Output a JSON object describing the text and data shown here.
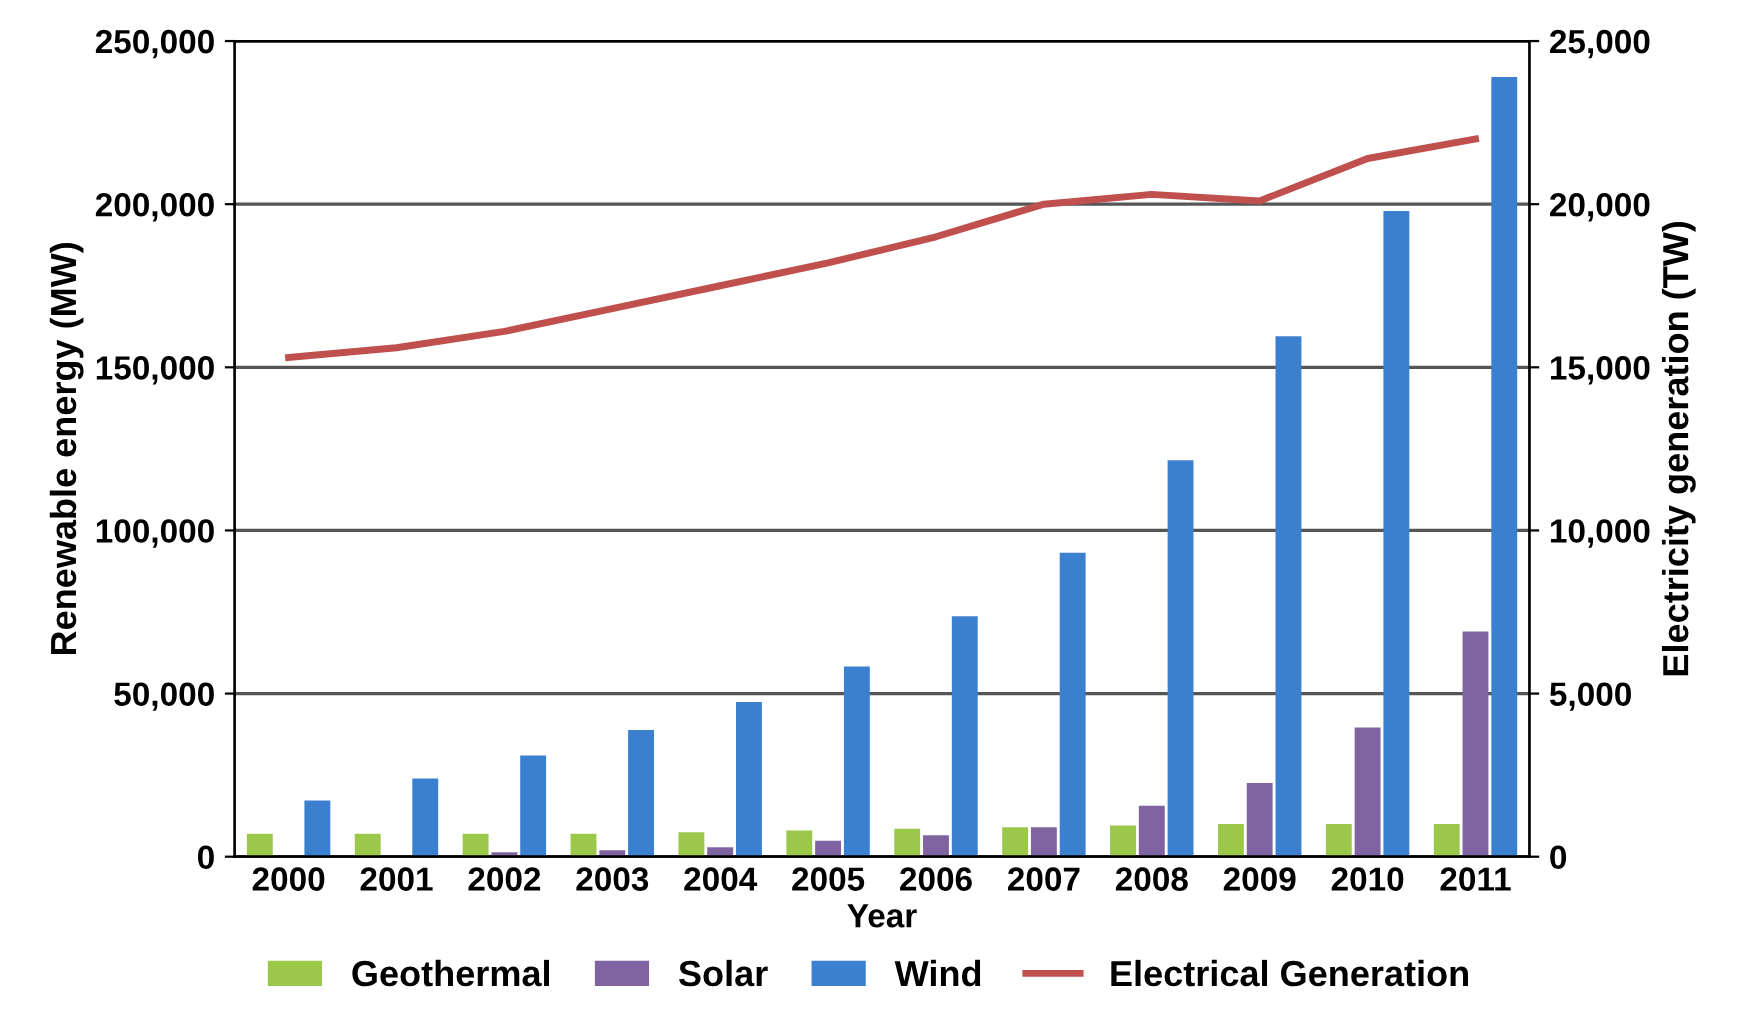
{
  "chart_data": {
    "type": "bar",
    "xlabel": "Year",
    "ylabel": "Renewable energy (MW)",
    "y2label": "Electricity generation (TW)",
    "categories": [
      "2000",
      "2001",
      "2002",
      "2003",
      "2004",
      "2005",
      "2006",
      "2007",
      "2008",
      "2009",
      "2010",
      "2011"
    ],
    "series": [
      {
        "name": "Geothermal",
        "color": "#9bc84a",
        "values": [
          7000,
          7000,
          7000,
          7000,
          7500,
          8000,
          8600,
          9000,
          9600,
          10000,
          10000,
          10000
        ]
      },
      {
        "name": "Solar",
        "color": "#8064a2",
        "values": [
          null,
          null,
          1400,
          2000,
          2900,
          4900,
          6600,
          9000,
          15600,
          22600,
          39600,
          69000
        ]
      },
      {
        "name": "Wind",
        "color": "#3b7fcf",
        "values": [
          17200,
          24000,
          31000,
          38800,
          47400,
          58300,
          73700,
          93200,
          121500,
          159500,
          197900,
          239000
        ]
      },
      {
        "name": "Electrical Generation",
        "type": "line",
        "axis": "y2",
        "color": "#c0504d",
        "values": [
          15300,
          15600,
          16100,
          16800,
          17500,
          18200,
          19000,
          20000,
          20300,
          20100,
          21400,
          22000
        ]
      }
    ],
    "ylim": [
      0,
      250000
    ],
    "yticks": [
      {
        "value": 0,
        "label": "0"
      },
      {
        "value": 50000,
        "label": "50,000"
      },
      {
        "value": 100000,
        "label": "100,000"
      },
      {
        "value": 150000,
        "label": "150,000"
      },
      {
        "value": 200000,
        "label": "200,000"
      },
      {
        "value": 250000,
        "label": "250,000"
      }
    ],
    "y2lim": [
      0,
      25000
    ],
    "y2ticks": [
      {
        "value": 0,
        "label": "0"
      },
      {
        "value": 5000,
        "label": "5,000"
      },
      {
        "value": 10000,
        "label": "10,000"
      },
      {
        "value": 15000,
        "label": "15,000"
      },
      {
        "value": 20000,
        "label": "20,000"
      },
      {
        "value": 25000,
        "label": "25,000"
      }
    ],
    "grid": "y",
    "legend": "bottom"
  }
}
